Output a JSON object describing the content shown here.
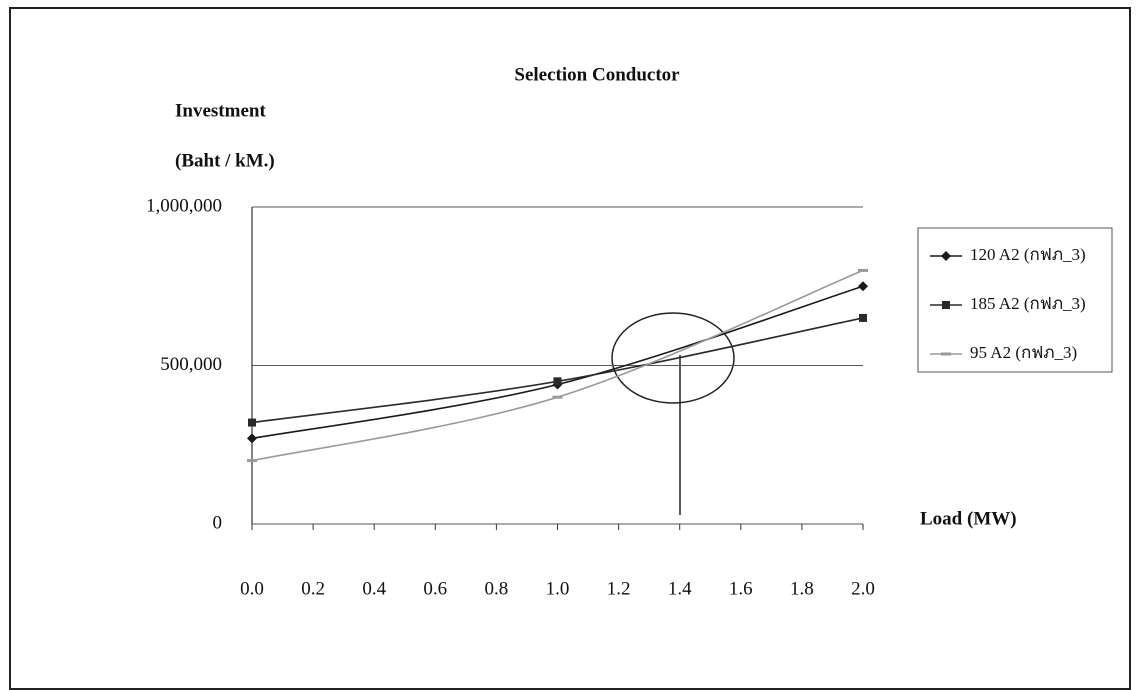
{
  "chart_data": {
    "type": "line",
    "title": "Selection Conductor",
    "y_label_line1": "Investment",
    "y_label_line2": "(Baht / kM.)",
    "x_label": "Load (MW)",
    "x": [
      0,
      1,
      2
    ],
    "series": [
      {
        "name": "120 A2 (กฟภ_3)",
        "color": "#1a1a1a",
        "marker": "diamond",
        "values": [
          270000,
          440000,
          750000
        ]
      },
      {
        "name": "185 A2 (กฟภ_3)",
        "color": "#2a2a2a",
        "marker": "square",
        "values": [
          320000,
          450000,
          650000
        ]
      },
      {
        "name": "95 A2 (กฟภ_3)",
        "color": "#9a9a9a",
        "marker": "dash",
        "values": [
          200000,
          400000,
          800000
        ]
      }
    ],
    "xlim": [
      0,
      2
    ],
    "xticks": [
      {
        "value": 0,
        "label": "0.0"
      },
      0.2,
      0.4,
      0.6,
      0.8,
      {
        "value": 1,
        "label": "1.0"
      },
      1.2,
      1.4,
      1.6,
      1.8,
      {
        "value": 2,
        "label": "2.0"
      }
    ],
    "ylim": [
      0,
      1000000
    ],
    "yticks": [
      0,
      {
        "value": 500000,
        "label": "500,000"
      },
      {
        "value": 1000000,
        "label": "1,000,000"
      }
    ],
    "grid": true,
    "legend": "right"
  }
}
